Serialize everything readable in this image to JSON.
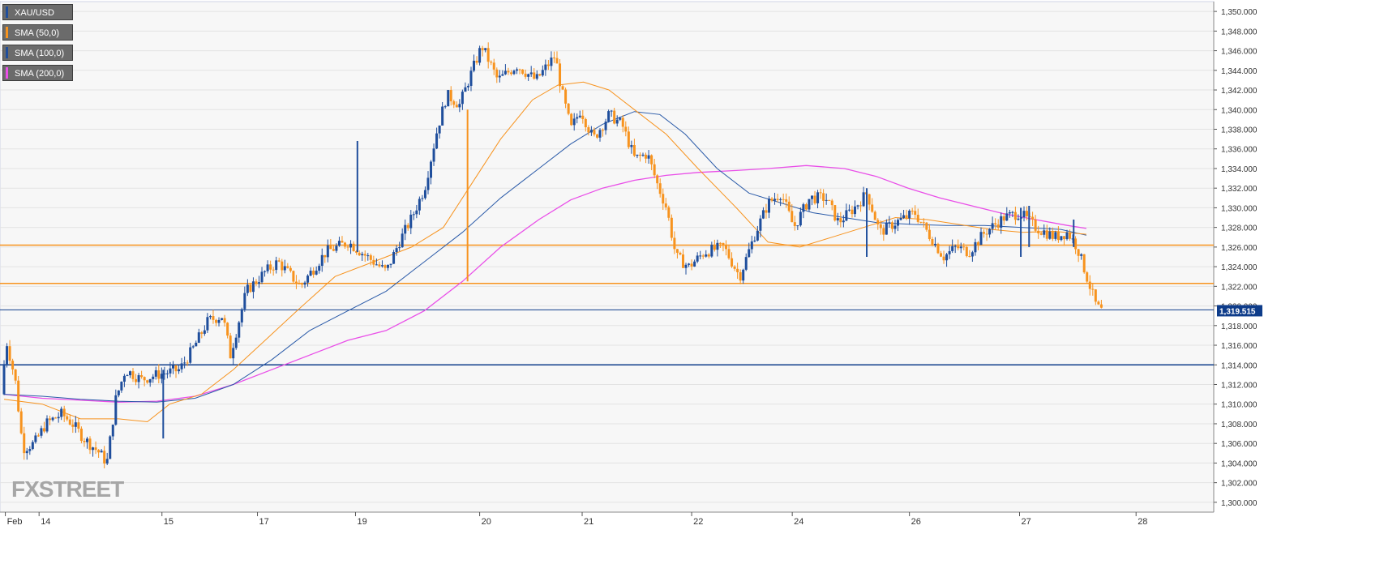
{
  "app": {
    "logo_prefix": "FX",
    "logo_x": "X",
    "logo_suffix": "STREET"
  },
  "legend": [
    {
      "label": "XAU/USD",
      "color": "#1f4e9c"
    },
    {
      "label": "SMA (50,0)",
      "color": "#f7931e"
    },
    {
      "label": "SMA (100,0)",
      "color": "#1f4e9c"
    },
    {
      "label": "SMA (200,0)",
      "color": "#e94fe8"
    }
  ],
  "colors": {
    "bull": "#1f4e9c",
    "bear": "#f7931e",
    "sma50": "#f7931e",
    "sma100": "#2a5aa8",
    "sma200": "#e94fe8",
    "support": "#f7931e",
    "level": "#0e3c8a",
    "grid": "#e3e3e3",
    "background": "#f7f7f7"
  },
  "chart_data": {
    "type": "candlestick",
    "symbol": "XAU/USD",
    "ylim": [
      1299,
      1351
    ],
    "y_ticks": [
      "1,300.000",
      "1,302.000",
      "1,304.000",
      "1,306.000",
      "1,308.000",
      "1,310.000",
      "1,312.000",
      "1,314.000",
      "1,316.000",
      "1,318.000",
      "1,320.000",
      "1,322.000",
      "1,324.000",
      "1,326.000",
      "1,328.000",
      "1,330.000",
      "1,332.000",
      "1,334.000",
      "1,336.000",
      "1,338.000",
      "1,340.000",
      "1,342.000",
      "1,344.000",
      "1,346.000",
      "1,348.000",
      "1,350.000"
    ],
    "x_ticks": [
      {
        "label": "Feb",
        "t": 0.02
      },
      {
        "label": "14",
        "t": 0.55
      },
      {
        "label": "15",
        "t": 2.48
      },
      {
        "label": "17",
        "t": 3.98
      },
      {
        "label": "19",
        "t": 5.52
      },
      {
        "label": "20",
        "t": 7.47
      },
      {
        "label": "21",
        "t": 9.08
      },
      {
        "label": "22",
        "t": 10.8
      },
      {
        "label": "24",
        "t": 12.38
      },
      {
        "label": "26",
        "t": 14.22
      },
      {
        "label": "27",
        "t": 15.95
      },
      {
        "label": "28",
        "t": 17.78
      }
    ],
    "xlim": [
      0,
      19.0
    ],
    "last_price": "1,319.515",
    "last_price_value": 1319.515,
    "horizontal_lines": [
      {
        "name": "resistance-1",
        "value": 1326.2,
        "color": "#f7931e"
      },
      {
        "name": "resistance-2",
        "value": 1322.3,
        "color": "#f7931e"
      },
      {
        "name": "current-price",
        "value": 1319.6,
        "color": "#0e3c8a"
      },
      {
        "name": "support-1",
        "value": 1314.0,
        "color": "#0e3c8a"
      }
    ],
    "price_path": [
      [
        0.0,
        1311.0
      ],
      [
        0.08,
        1316.5
      ],
      [
        0.22,
        1312.5
      ],
      [
        0.34,
        1305.5
      ],
      [
        0.52,
        1306.0
      ],
      [
        0.7,
        1308.0
      ],
      [
        0.95,
        1309.0
      ],
      [
        1.12,
        1308.0
      ],
      [
        1.3,
        1306.5
      ],
      [
        1.55,
        1305.0
      ],
      [
        1.66,
        1304.0
      ],
      [
        1.8,
        1310.5
      ],
      [
        1.95,
        1313.5
      ],
      [
        2.2,
        1312.5
      ],
      [
        2.45,
        1313.0
      ],
      [
        2.8,
        1313.5
      ],
      [
        3.0,
        1315.5
      ],
      [
        3.25,
        1318.5
      ],
      [
        3.48,
        1319.0
      ],
      [
        3.6,
        1315.0
      ],
      [
        3.85,
        1321.5
      ],
      [
        4.15,
        1323.5
      ],
      [
        4.35,
        1324.5
      ],
      [
        4.7,
        1322.0
      ],
      [
        5.1,
        1325.5
      ],
      [
        5.45,
        1326.5
      ],
      [
        5.75,
        1325.0
      ],
      [
        6.05,
        1323.5
      ],
      [
        6.25,
        1326.5
      ],
      [
        6.45,
        1329.0
      ],
      [
        6.65,
        1332.0
      ],
      [
        6.85,
        1338.0
      ],
      [
        7.0,
        1341.5
      ],
      [
        7.2,
        1340.5
      ],
      [
        7.4,
        1344.0
      ],
      [
        7.55,
        1346.5
      ],
      [
        7.8,
        1343.0
      ],
      [
        8.1,
        1344.5
      ],
      [
        8.4,
        1343.0
      ],
      [
        8.7,
        1345.5
      ],
      [
        8.8,
        1342.0
      ],
      [
        8.95,
        1338.0
      ],
      [
        9.1,
        1340.0
      ],
      [
        9.3,
        1337.0
      ],
      [
        9.55,
        1339.5
      ],
      [
        9.75,
        1338.5
      ],
      [
        9.95,
        1335.0
      ],
      [
        10.15,
        1335.5
      ],
      [
        10.3,
        1332.5
      ],
      [
        10.45,
        1330.0
      ],
      [
        10.6,
        1325.0
      ],
      [
        10.8,
        1324.0
      ],
      [
        11.05,
        1325.5
      ],
      [
        11.35,
        1326.0
      ],
      [
        11.6,
        1323.0
      ],
      [
        11.85,
        1327.5
      ],
      [
        12.05,
        1330.5
      ],
      [
        12.25,
        1331.5
      ],
      [
        12.45,
        1328.0
      ],
      [
        12.7,
        1331.0
      ],
      [
        12.95,
        1331.0
      ],
      [
        13.15,
        1328.5
      ],
      [
        13.4,
        1330.0
      ],
      [
        13.6,
        1331.5
      ],
      [
        13.8,
        1327.5
      ],
      [
        14.05,
        1328.5
      ],
      [
        14.35,
        1329.5
      ],
      [
        14.55,
        1327.5
      ],
      [
        14.8,
        1325.0
      ],
      [
        15.0,
        1326.0
      ],
      [
        15.2,
        1325.5
      ],
      [
        15.45,
        1327.5
      ],
      [
        15.75,
        1329.0
      ],
      [
        16.0,
        1329.5
      ],
      [
        16.25,
        1328.0
      ],
      [
        16.55,
        1327.0
      ],
      [
        16.75,
        1327.5
      ],
      [
        16.9,
        1326.0
      ],
      [
        17.05,
        1323.0
      ],
      [
        17.2,
        1320.0
      ],
      [
        17.28,
        1319.5
      ]
    ],
    "spikes": [
      {
        "t": 2.5,
        "low": 1306.5,
        "high": 1313.5
      },
      {
        "t": 5.55,
        "low": 1325.5,
        "high": 1336.8
      },
      {
        "t": 7.28,
        "low": 1322.5,
        "high": 1340.0
      },
      {
        "t": 13.55,
        "low": 1325.0,
        "high": 1332.0
      },
      {
        "t": 15.97,
        "low": 1325.0,
        "high": 1330.0
      },
      {
        "t": 16.1,
        "low": 1326.0,
        "high": 1330.2
      },
      {
        "t": 16.8,
        "low": 1326.0,
        "high": 1328.8
      }
    ],
    "sma50": [
      [
        0.0,
        1310.5
      ],
      [
        0.6,
        1310.0
      ],
      [
        1.2,
        1308.5
      ],
      [
        1.8,
        1308.5
      ],
      [
        2.25,
        1308.2
      ],
      [
        2.6,
        1310.0
      ],
      [
        3.1,
        1311.0
      ],
      [
        3.6,
        1313.5
      ],
      [
        4.1,
        1316.5
      ],
      [
        4.6,
        1319.5
      ],
      [
        5.2,
        1323.0
      ],
      [
        5.8,
        1324.5
      ],
      [
        6.4,
        1326.0
      ],
      [
        6.9,
        1328.0
      ],
      [
        7.3,
        1332.0
      ],
      [
        7.8,
        1337.0
      ],
      [
        8.3,
        1341.0
      ],
      [
        8.7,
        1342.5
      ],
      [
        9.1,
        1342.8
      ],
      [
        9.5,
        1342.0
      ],
      [
        9.9,
        1340.0
      ],
      [
        10.4,
        1337.5
      ],
      [
        10.9,
        1334.0
      ],
      [
        11.5,
        1330.0
      ],
      [
        12.0,
        1326.5
      ],
      [
        12.5,
        1326.0
      ],
      [
        13.0,
        1327.0
      ],
      [
        13.5,
        1328.0
      ],
      [
        14.0,
        1329.0
      ],
      [
        14.5,
        1328.8
      ],
      [
        15.0,
        1328.3
      ],
      [
        15.5,
        1327.8
      ],
      [
        16.0,
        1327.5
      ],
      [
        16.5,
        1327.6
      ],
      [
        17.0,
        1327.3
      ]
    ],
    "sma100": [
      [
        0.0,
        1311.0
      ],
      [
        0.6,
        1310.8
      ],
      [
        1.2,
        1310.5
      ],
      [
        1.8,
        1310.3
      ],
      [
        2.4,
        1310.2
      ],
      [
        3.0,
        1310.6
      ],
      [
        3.6,
        1312.0
      ],
      [
        4.2,
        1314.5
      ],
      [
        4.8,
        1317.5
      ],
      [
        5.4,
        1319.5
      ],
      [
        6.0,
        1321.5
      ],
      [
        6.6,
        1324.5
      ],
      [
        7.2,
        1327.5
      ],
      [
        7.8,
        1331.0
      ],
      [
        8.4,
        1334.0
      ],
      [
        8.9,
        1336.5
      ],
      [
        9.4,
        1338.5
      ],
      [
        9.9,
        1339.8
      ],
      [
        10.3,
        1339.5
      ],
      [
        10.7,
        1337.5
      ],
      [
        11.2,
        1334.0
      ],
      [
        11.7,
        1331.5
      ],
      [
        12.2,
        1330.5
      ],
      [
        12.7,
        1329.5
      ],
      [
        13.2,
        1329.0
      ],
      [
        13.7,
        1328.5
      ],
      [
        14.3,
        1328.3
      ],
      [
        14.8,
        1328.2
      ],
      [
        15.4,
        1328.2
      ],
      [
        16.0,
        1328.0
      ],
      [
        16.6,
        1327.8
      ],
      [
        17.0,
        1327.2
      ]
    ],
    "sma200": [
      [
        0.0,
        1311.0
      ],
      [
        0.6,
        1310.6
      ],
      [
        1.2,
        1310.4
      ],
      [
        1.8,
        1310.2
      ],
      [
        2.4,
        1310.3
      ],
      [
        3.0,
        1310.8
      ],
      [
        3.6,
        1312.0
      ],
      [
        4.2,
        1313.5
      ],
      [
        4.8,
        1315.0
      ],
      [
        5.4,
        1316.5
      ],
      [
        6.0,
        1317.5
      ],
      [
        6.6,
        1319.5
      ],
      [
        7.2,
        1322.5
      ],
      [
        7.8,
        1326.0
      ],
      [
        8.4,
        1328.8
      ],
      [
        8.9,
        1330.8
      ],
      [
        9.4,
        1332.0
      ],
      [
        9.9,
        1332.8
      ],
      [
        10.4,
        1333.3
      ],
      [
        10.9,
        1333.6
      ],
      [
        11.5,
        1333.8
      ],
      [
        12.0,
        1334.0
      ],
      [
        12.6,
        1334.3
      ],
      [
        13.2,
        1334.0
      ],
      [
        13.7,
        1333.2
      ],
      [
        14.2,
        1332.0
      ],
      [
        14.7,
        1331.0
      ],
      [
        15.2,
        1330.2
      ],
      [
        15.7,
        1329.4
      ],
      [
        16.2,
        1328.8
      ],
      [
        16.7,
        1328.2
      ],
      [
        17.0,
        1327.9
      ]
    ]
  }
}
